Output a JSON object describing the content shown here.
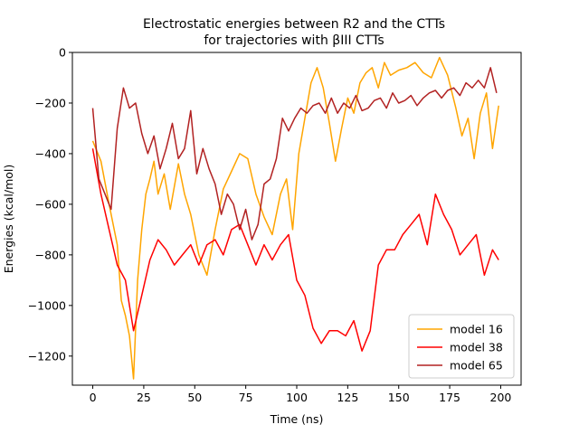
{
  "chart_data": {
    "type": "line",
    "title": [
      "Electrostatic energies between R2 and the CTTs",
      "for trajectories with βIII CTTs"
    ],
    "xlabel": "Time (ns)",
    "ylabel": "Energies (kcal/mol)",
    "xlim": [
      -10,
      210
    ],
    "ylim": [
      -1315,
      0
    ],
    "xticks": [
      0,
      25,
      50,
      75,
      100,
      125,
      150,
      175,
      200
    ],
    "yticks": [
      0,
      -200,
      -400,
      -600,
      -800,
      -1000,
      -1200
    ],
    "ytick_labels": [
      "0",
      "−200",
      "−400",
      "−600",
      "−800",
      "−1000",
      "−1200"
    ],
    "grid": false,
    "legend_position": "lower-right",
    "series": [
      {
        "name": "model 16",
        "color": "#ffa500",
        "x": [
          0,
          4,
          8,
          12,
          14,
          16,
          18,
          20,
          22,
          24,
          26,
          28,
          30,
          32,
          35,
          38,
          42,
          45,
          48,
          52,
          56,
          60,
          64,
          68,
          72,
          76,
          80,
          84,
          88,
          92,
          95,
          98,
          101,
          104,
          107,
          110,
          113,
          116,
          119,
          122,
          125,
          128,
          131,
          134,
          137,
          140,
          143,
          146,
          150,
          154,
          158,
          162,
          166,
          170,
          174,
          178,
          181,
          184,
          187,
          190,
          193,
          196,
          199
        ],
        "y": [
          -350,
          -430,
          -600,
          -760,
          -980,
          -1040,
          -1120,
          -1290,
          -900,
          -700,
          -560,
          -500,
          -430,
          -560,
          -480,
          -620,
          -440,
          -560,
          -640,
          -800,
          -880,
          -700,
          -540,
          -470,
          -400,
          -420,
          -560,
          -650,
          -720,
          -560,
          -500,
          -700,
          -400,
          -260,
          -120,
          -60,
          -140,
          -280,
          -430,
          -300,
          -180,
          -240,
          -120,
          -80,
          -60,
          -140,
          -40,
          -90,
          -70,
          -60,
          -40,
          -80,
          -100,
          -20,
          -90,
          -220,
          -330,
          -260,
          -420,
          -240,
          -160,
          -380,
          -210
        ]
      },
      {
        "name": "model 38",
        "color": "#ff0000",
        "x": [
          0,
          4,
          8,
          12,
          16,
          20,
          24,
          28,
          32,
          36,
          40,
          44,
          48,
          52,
          56,
          60,
          64,
          68,
          72,
          76,
          80,
          84,
          88,
          92,
          96,
          100,
          104,
          108,
          112,
          116,
          120,
          124,
          128,
          132,
          136,
          140,
          144,
          148,
          152,
          156,
          160,
          164,
          168,
          172,
          176,
          180,
          184,
          188,
          192,
          196,
          199
        ],
        "y": [
          -380,
          -560,
          -700,
          -840,
          -900,
          -1100,
          -960,
          -820,
          -740,
          -780,
          -840,
          -800,
          -760,
          -840,
          -760,
          -740,
          -800,
          -700,
          -680,
          -760,
          -840,
          -760,
          -820,
          -760,
          -720,
          -900,
          -960,
          -1090,
          -1150,
          -1100,
          -1100,
          -1120,
          -1060,
          -1180,
          -1100,
          -840,
          -780,
          -780,
          -720,
          -680,
          -640,
          -760,
          -560,
          -640,
          -700,
          -800,
          -760,
          -720,
          -880,
          -780,
          -820
        ]
      },
      {
        "name": "model 65",
        "color": "#b22222",
        "x": [
          0,
          3,
          6,
          9,
          12,
          15,
          18,
          21,
          24,
          27,
          30,
          33,
          36,
          39,
          42,
          45,
          48,
          51,
          54,
          57,
          60,
          63,
          66,
          69,
          72,
          75,
          78,
          81,
          84,
          87,
          90,
          93,
          96,
          99,
          102,
          105,
          108,
          111,
          114,
          117,
          120,
          123,
          126,
          129,
          132,
          135,
          138,
          141,
          144,
          147,
          150,
          153,
          156,
          159,
          162,
          165,
          168,
          171,
          174,
          177,
          180,
          183,
          186,
          189,
          192,
          195,
          198
        ],
        "y": [
          -220,
          -500,
          -560,
          -620,
          -300,
          -140,
          -220,
          -200,
          -320,
          -400,
          -330,
          -460,
          -380,
          -280,
          -420,
          -380,
          -230,
          -480,
          -380,
          -460,
          -520,
          -640,
          -560,
          -600,
          -700,
          -620,
          -740,
          -680,
          -520,
          -500,
          -420,
          -260,
          -310,
          -260,
          -220,
          -240,
          -210,
          -200,
          -240,
          -180,
          -240,
          -200,
          -220,
          -170,
          -230,
          -220,
          -190,
          -180,
          -220,
          -160,
          -200,
          -190,
          -170,
          -210,
          -180,
          -160,
          -150,
          -180,
          -150,
          -140,
          -170,
          -120,
          -140,
          -110,
          -140,
          -60,
          -160
        ]
      }
    ]
  }
}
